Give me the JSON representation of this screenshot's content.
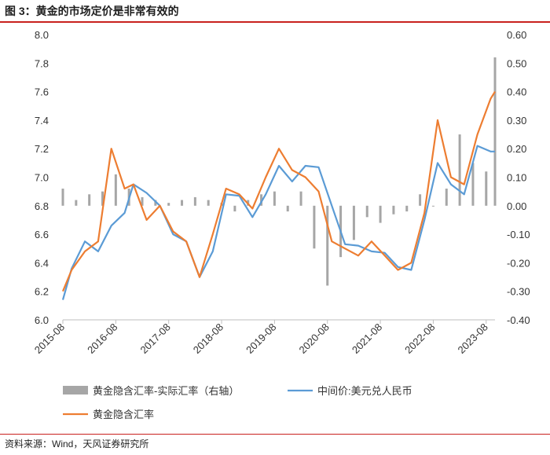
{
  "title": "图 3：黄金的市场定价是非常有效的",
  "source": "资料来源：Wind，天风证券研究所",
  "chart_data": {
    "type": "line",
    "x_ticks": [
      "2015-08",
      "2016-08",
      "2017-08",
      "2018-08",
      "2019-08",
      "2020-08",
      "2021-08",
      "2022-08",
      "2023-08"
    ],
    "y_left": {
      "range": [
        6.0,
        8.0
      ],
      "ticks": [
        "8.0",
        "7.8",
        "7.6",
        "7.4",
        "7.2",
        "7.0",
        "6.8",
        "6.6",
        "6.4",
        "6.2",
        "6.0"
      ]
    },
    "y_right": {
      "range": [
        -0.4,
        0.6
      ],
      "ticks": [
        "0.60",
        "0.50",
        "0.40",
        "0.30",
        "0.20",
        "0.10",
        "0.00",
        "-0.10",
        "-0.20",
        "-0.30",
        "-0.40"
      ]
    },
    "legend_position": "bottom",
    "series": [
      {
        "name": "黄金隐含汇率-实际汇率（右轴）",
        "kind": "bar",
        "axis": "right",
        "color": "#a6a6a6",
        "x": [
          "2015-08",
          "2015-11",
          "2016-02",
          "2016-05",
          "2016-08",
          "2016-11",
          "2017-02",
          "2017-05",
          "2017-08",
          "2017-11",
          "2018-02",
          "2018-05",
          "2018-08",
          "2018-11",
          "2019-02",
          "2019-05",
          "2019-08",
          "2019-11",
          "2020-02",
          "2020-05",
          "2020-08",
          "2020-11",
          "2021-02",
          "2021-05",
          "2021-08",
          "2021-11",
          "2022-02",
          "2022-05",
          "2022-08",
          "2022-11",
          "2023-02",
          "2023-05",
          "2023-08",
          "2023-10"
        ],
        "values": [
          0.06,
          0.02,
          0.04,
          0.05,
          0.11,
          0.06,
          0.03,
          0.02,
          0.01,
          0.02,
          0.03,
          0.02,
          0.01,
          -0.02,
          0.02,
          0.04,
          0.05,
          -0.02,
          0.05,
          -0.15,
          -0.28,
          -0.18,
          -0.12,
          -0.04,
          -0.06,
          -0.03,
          -0.02,
          0.04,
          0.0,
          0.06,
          0.25,
          0.15,
          0.12,
          0.52
        ]
      },
      {
        "name": "中间价:美元兑人民币",
        "kind": "line",
        "axis": "left",
        "color": "#5b9bd5",
        "x": [
          "2015-08",
          "2015-10",
          "2016-01",
          "2016-04",
          "2016-07",
          "2016-10",
          "2016-12",
          "2017-03",
          "2017-06",
          "2017-09",
          "2017-12",
          "2018-03",
          "2018-06",
          "2018-09",
          "2018-12",
          "2019-03",
          "2019-06",
          "2019-09",
          "2019-12",
          "2020-03",
          "2020-06",
          "2020-09",
          "2020-12",
          "2021-03",
          "2021-06",
          "2021-09",
          "2021-12",
          "2022-03",
          "2022-06",
          "2022-09",
          "2022-12",
          "2023-03",
          "2023-06",
          "2023-09",
          "2023-10"
        ],
        "values": [
          6.14,
          6.36,
          6.55,
          6.48,
          6.66,
          6.75,
          6.95,
          6.89,
          6.8,
          6.6,
          6.55,
          6.3,
          6.48,
          6.88,
          6.87,
          6.72,
          6.88,
          7.08,
          6.97,
          7.08,
          7.07,
          6.8,
          6.53,
          6.52,
          6.48,
          6.47,
          6.37,
          6.35,
          6.7,
          7.1,
          6.95,
          6.88,
          7.22,
          7.18,
          7.18
        ]
      },
      {
        "name": "黄金隐含汇率",
        "kind": "line",
        "axis": "left",
        "color": "#ed7d31",
        "x": [
          "2015-08",
          "2015-10",
          "2016-01",
          "2016-04",
          "2016-07",
          "2016-10",
          "2016-12",
          "2017-03",
          "2017-06",
          "2017-09",
          "2017-12",
          "2018-03",
          "2018-06",
          "2018-09",
          "2018-12",
          "2019-03",
          "2019-06",
          "2019-09",
          "2019-12",
          "2020-03",
          "2020-06",
          "2020-09",
          "2020-12",
          "2021-03",
          "2021-06",
          "2021-09",
          "2021-12",
          "2022-03",
          "2022-06",
          "2022-09",
          "2022-12",
          "2023-03",
          "2023-06",
          "2023-09",
          "2023-10"
        ],
        "values": [
          6.2,
          6.35,
          6.48,
          6.55,
          7.2,
          6.92,
          6.95,
          6.7,
          6.8,
          6.62,
          6.55,
          6.3,
          6.6,
          6.92,
          6.88,
          6.78,
          7.0,
          7.2,
          7.05,
          7.0,
          6.9,
          6.55,
          6.5,
          6.45,
          6.55,
          6.45,
          6.35,
          6.4,
          6.75,
          7.4,
          7.0,
          6.95,
          7.3,
          7.55,
          7.6
        ]
      }
    ]
  }
}
